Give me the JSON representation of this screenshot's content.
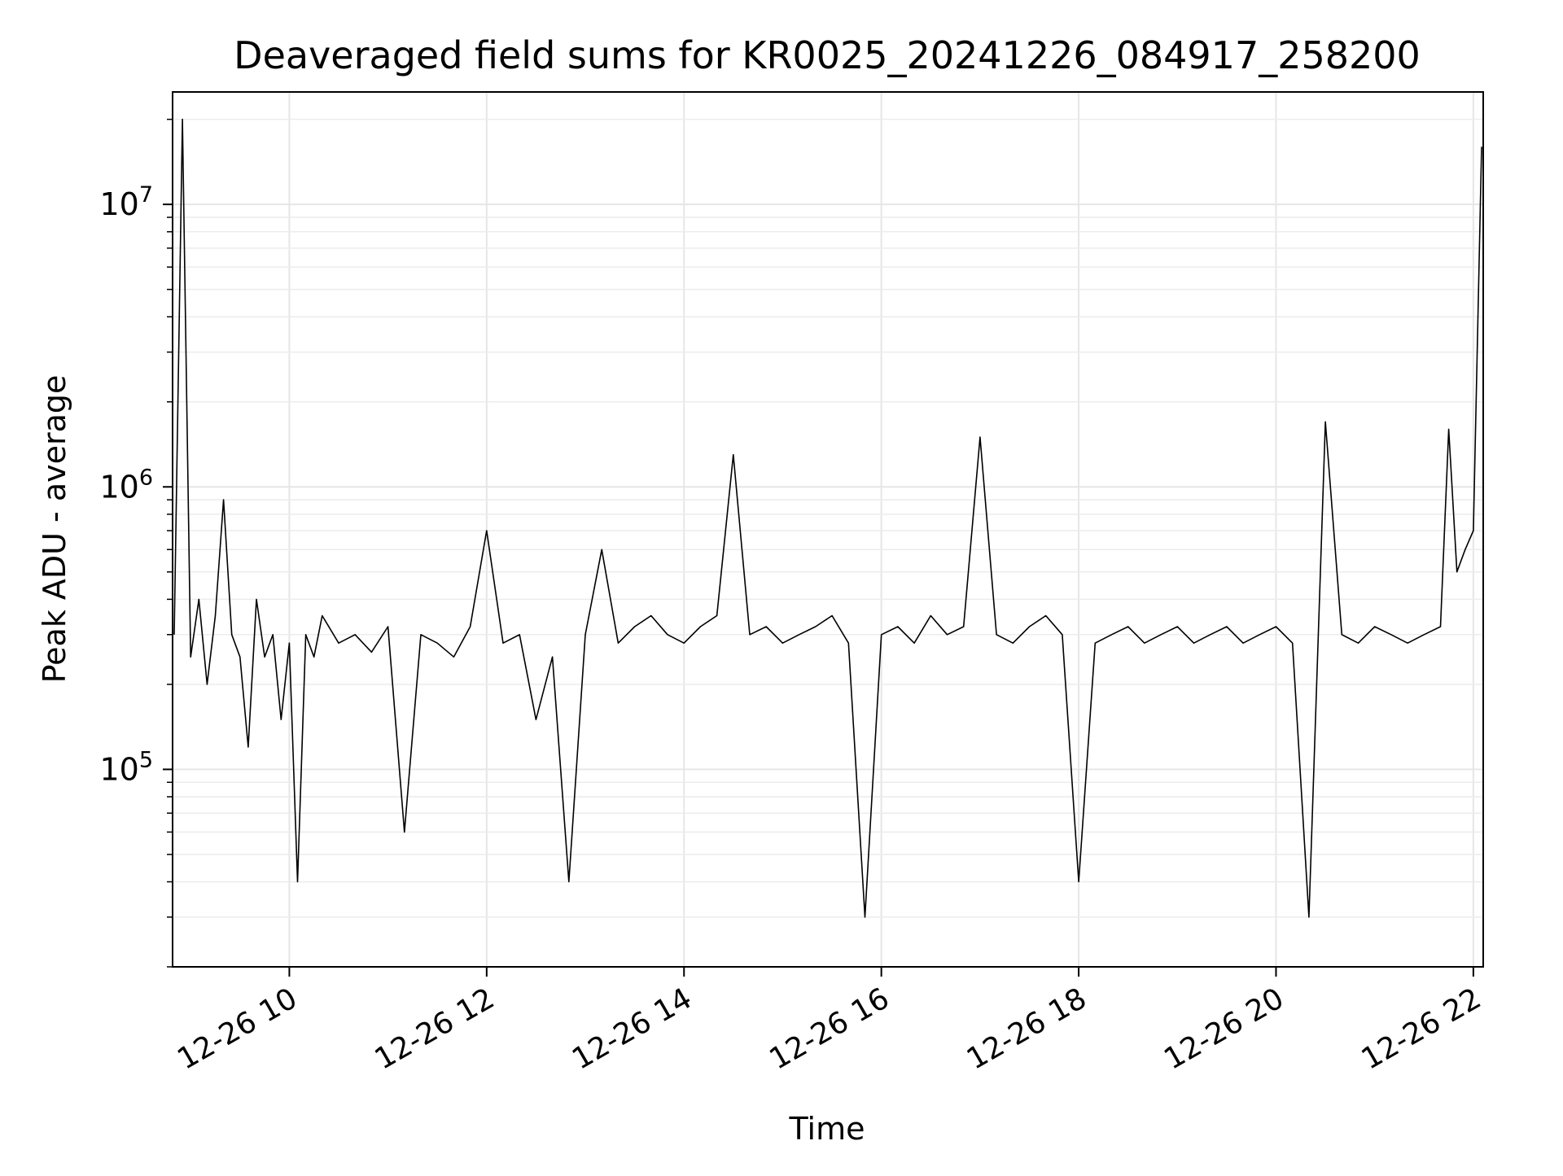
{
  "chart_data": {
    "type": "line",
    "title": "Deaveraged field sums for KR0025_20241226_084917_258200",
    "xlabel": "Time",
    "ylabel": "Peak ADU - average",
    "xlim": [
      "12-26 08:49",
      "12-26 22:06"
    ],
    "ylim": [
      20000,
      25000000
    ],
    "yscale": "log",
    "grid": true,
    "x_ticks": [
      {
        "value": "12-26 10",
        "hour": 10
      },
      {
        "value": "12-26 12",
        "hour": 12
      },
      {
        "value": "12-26 14",
        "hour": 14
      },
      {
        "value": "12-26 16",
        "hour": 16
      },
      {
        "value": "12-26 18",
        "hour": 18
      },
      {
        "value": "12-26 20",
        "hour": 20
      },
      {
        "value": "12-26 22",
        "hour": 22
      }
    ],
    "y_ticks": [
      {
        "base": "10",
        "exp": "5",
        "value": 100000
      },
      {
        "base": "10",
        "exp": "6",
        "value": 1000000
      },
      {
        "base": "10",
        "exp": "7",
        "value": 10000000
      }
    ],
    "series_color": "#000000",
    "series": [
      {
        "x": [
          "12-26 08:50",
          "12-26 08:55",
          "12-26 09:00",
          "12-26 09:05",
          "12-26 09:10",
          "12-26 09:15",
          "12-26 09:20",
          "12-26 09:25",
          "12-26 09:30",
          "12-26 09:35",
          "12-26 09:40",
          "12-26 09:45",
          "12-26 09:50",
          "12-26 09:55",
          "12-26 10:00",
          "12-26 10:05",
          "12-26 10:10",
          "12-26 10:15",
          "12-26 10:20",
          "12-26 10:30",
          "12-26 10:40",
          "12-26 10:50",
          "12-26 11:00",
          "12-26 11:10",
          "12-26 11:20",
          "12-26 11:30",
          "12-26 11:40",
          "12-26 11:50",
          "12-26 12:00",
          "12-26 12:10",
          "12-26 12:20",
          "12-26 12:30",
          "12-26 12:40",
          "12-26 12:50",
          "12-26 13:00",
          "12-26 13:10",
          "12-26 13:20",
          "12-26 13:30",
          "12-26 13:40",
          "12-26 13:50",
          "12-26 14:00",
          "12-26 14:10",
          "12-26 14:20",
          "12-26 14:30",
          "12-26 14:40",
          "12-26 14:50",
          "12-26 15:00",
          "12-26 15:10",
          "12-26 15:20",
          "12-26 15:30",
          "12-26 15:40",
          "12-26 15:50",
          "12-26 16:00",
          "12-26 16:10",
          "12-26 16:20",
          "12-26 16:30",
          "12-26 16:40",
          "12-26 16:50",
          "12-26 17:00",
          "12-26 17:10",
          "12-26 17:20",
          "12-26 17:30",
          "12-26 17:40",
          "12-26 17:50",
          "12-26 18:00",
          "12-26 18:10",
          "12-26 18:20",
          "12-26 18:30",
          "12-26 18:40",
          "12-26 18:50",
          "12-26 19:00",
          "12-26 19:10",
          "12-26 19:20",
          "12-26 19:30",
          "12-26 19:40",
          "12-26 19:50",
          "12-26 20:00",
          "12-26 20:10",
          "12-26 20:20",
          "12-26 20:30",
          "12-26 20:40",
          "12-26 20:50",
          "12-26 21:00",
          "12-26 21:10",
          "12-26 21:20",
          "12-26 21:30",
          "12-26 21:40",
          "12-26 21:45",
          "12-26 21:50",
          "12-26 21:55",
          "12-26 22:00",
          "12-26 22:05"
        ],
        "y": [
          300000,
          20000000,
          250000,
          400000,
          200000,
          350000,
          900000,
          300000,
          250000,
          120000,
          400000,
          250000,
          300000,
          150000,
          280000,
          40000,
          300000,
          250000,
          350000,
          280000,
          300000,
          260000,
          320000,
          60000,
          300000,
          280000,
          250000,
          320000,
          700000,
          280000,
          300000,
          150000,
          250000,
          40000,
          300000,
          600000,
          280000,
          320000,
          350000,
          300000,
          280000,
          320000,
          350000,
          1300000,
          300000,
          320000,
          280000,
          300000,
          320000,
          350000,
          280000,
          30000,
          300000,
          320000,
          280000,
          350000,
          300000,
          320000,
          1500000,
          300000,
          280000,
          320000,
          350000,
          300000,
          40000,
          280000,
          300000,
          320000,
          280000,
          300000,
          320000,
          280000,
          300000,
          320000,
          280000,
          300000,
          320000,
          280000,
          30000,
          1700000,
          300000,
          280000,
          320000,
          300000,
          280000,
          300000,
          320000,
          1600000,
          500000,
          600000,
          700000,
          16000000
        ]
      }
    ]
  }
}
